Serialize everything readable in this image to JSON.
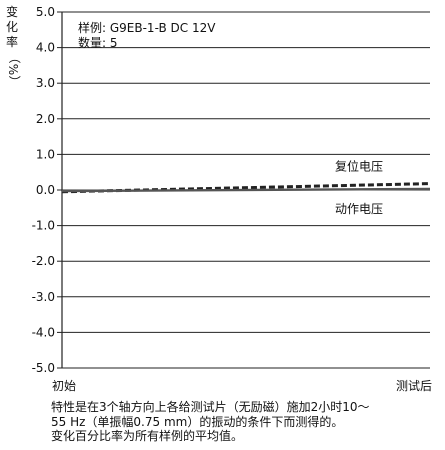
{
  "chart_data": {
    "type": "line",
    "sample_label": "样例: G9EB-1-B DC 12V",
    "count_label": "数量: 5",
    "ylabel_chars": [
      "变",
      "化",
      "率",
      "（",
      "%",
      "）"
    ],
    "yticks": [
      "5.0",
      "4.0",
      "3.0",
      "2.0",
      "1.0",
      "0.0",
      "-1.0",
      "-2.0",
      "-3.0",
      "-4.0",
      "-5.0"
    ],
    "ylim": [
      -5.0,
      5.0
    ],
    "x_categories": [
      "初始",
      "测试后"
    ],
    "grid": "horizontal",
    "series": [
      {
        "name": "复位电压",
        "values": [
          -0.05,
          0.18
        ],
        "style": "dashed",
        "color": "#222222"
      },
      {
        "name": "动作电压",
        "values": [
          -0.03,
          0.03
        ],
        "style": "solid",
        "color": "#555555"
      }
    ]
  },
  "caption": [
    "特性是在3个轴方向上各给测试片（无励磁）施加2小时10～",
    "55 Hz（单振幅0.75 mm）的振动的条件下而测得的。",
    "变化百分比率为所有样例的平均值。"
  ]
}
